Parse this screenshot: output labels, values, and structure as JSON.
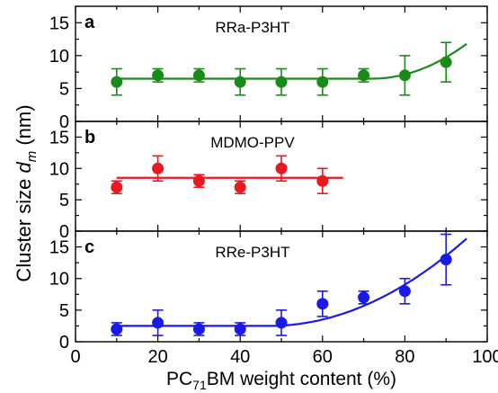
{
  "chart_data": {
    "type": "scatter",
    "shared_x_axis": {
      "label": "PC71BM weight content (%)",
      "label_main": "PC",
      "label_sub": "71",
      "label_rest": "BM weight content (%)",
      "range": [
        0,
        100
      ],
      "ticks": [
        0,
        20,
        40,
        60,
        80,
        100
      ],
      "minor_step": 10
    },
    "shared_y_label": {
      "prefix": "Cluster size ",
      "italic": "d",
      "sub": "m",
      "suffix": " (nm)"
    },
    "panels": [
      {
        "letter": "a",
        "title": "RRa-P3HT",
        "color": "#1a8a1a",
        "ylim": [
          0,
          17.5
        ],
        "yticks": [
          0,
          5,
          10,
          15
        ],
        "x": [
          10,
          20,
          30,
          40,
          50,
          60,
          70,
          80,
          90
        ],
        "y": [
          6,
          7,
          7,
          6,
          6,
          6,
          7,
          7,
          9
        ],
        "err": [
          2,
          1,
          1,
          2,
          2,
          2,
          1,
          3,
          3
        ],
        "fit": {
          "flat": 6.5,
          "x0": 72,
          "k": 0.01,
          "p": 2,
          "x_end": 95
        }
      },
      {
        "letter": "b",
        "title": "MDMO-PPV",
        "color": "#e8191f",
        "ylim": [
          0,
          17.5
        ],
        "yticks": [
          0,
          5,
          10,
          15
        ],
        "x": [
          10,
          20,
          30,
          40,
          50,
          60
        ],
        "y": [
          7,
          10,
          8,
          7,
          10,
          8
        ],
        "err": [
          1,
          2,
          1,
          1,
          2,
          2
        ],
        "fit": {
          "flat": 8.5,
          "x_start": 10,
          "x_end": 65
        }
      },
      {
        "letter": "c",
        "title": "RRe-P3HT",
        "color": "#1a1ae6",
        "ylim": [
          0,
          17.5
        ],
        "yticks": [
          0,
          5,
          10,
          15
        ],
        "x": [
          10,
          20,
          30,
          40,
          50,
          60,
          70,
          80,
          90
        ],
        "y": [
          2,
          3,
          2,
          2,
          3,
          6,
          7,
          8,
          13
        ],
        "err": [
          1,
          2,
          1,
          1,
          2,
          2,
          1,
          2,
          4
        ],
        "fit": {
          "flat": 2.5,
          "x0": 47,
          "k": 0.006,
          "p": 2,
          "x_end": 95
        }
      }
    ]
  }
}
